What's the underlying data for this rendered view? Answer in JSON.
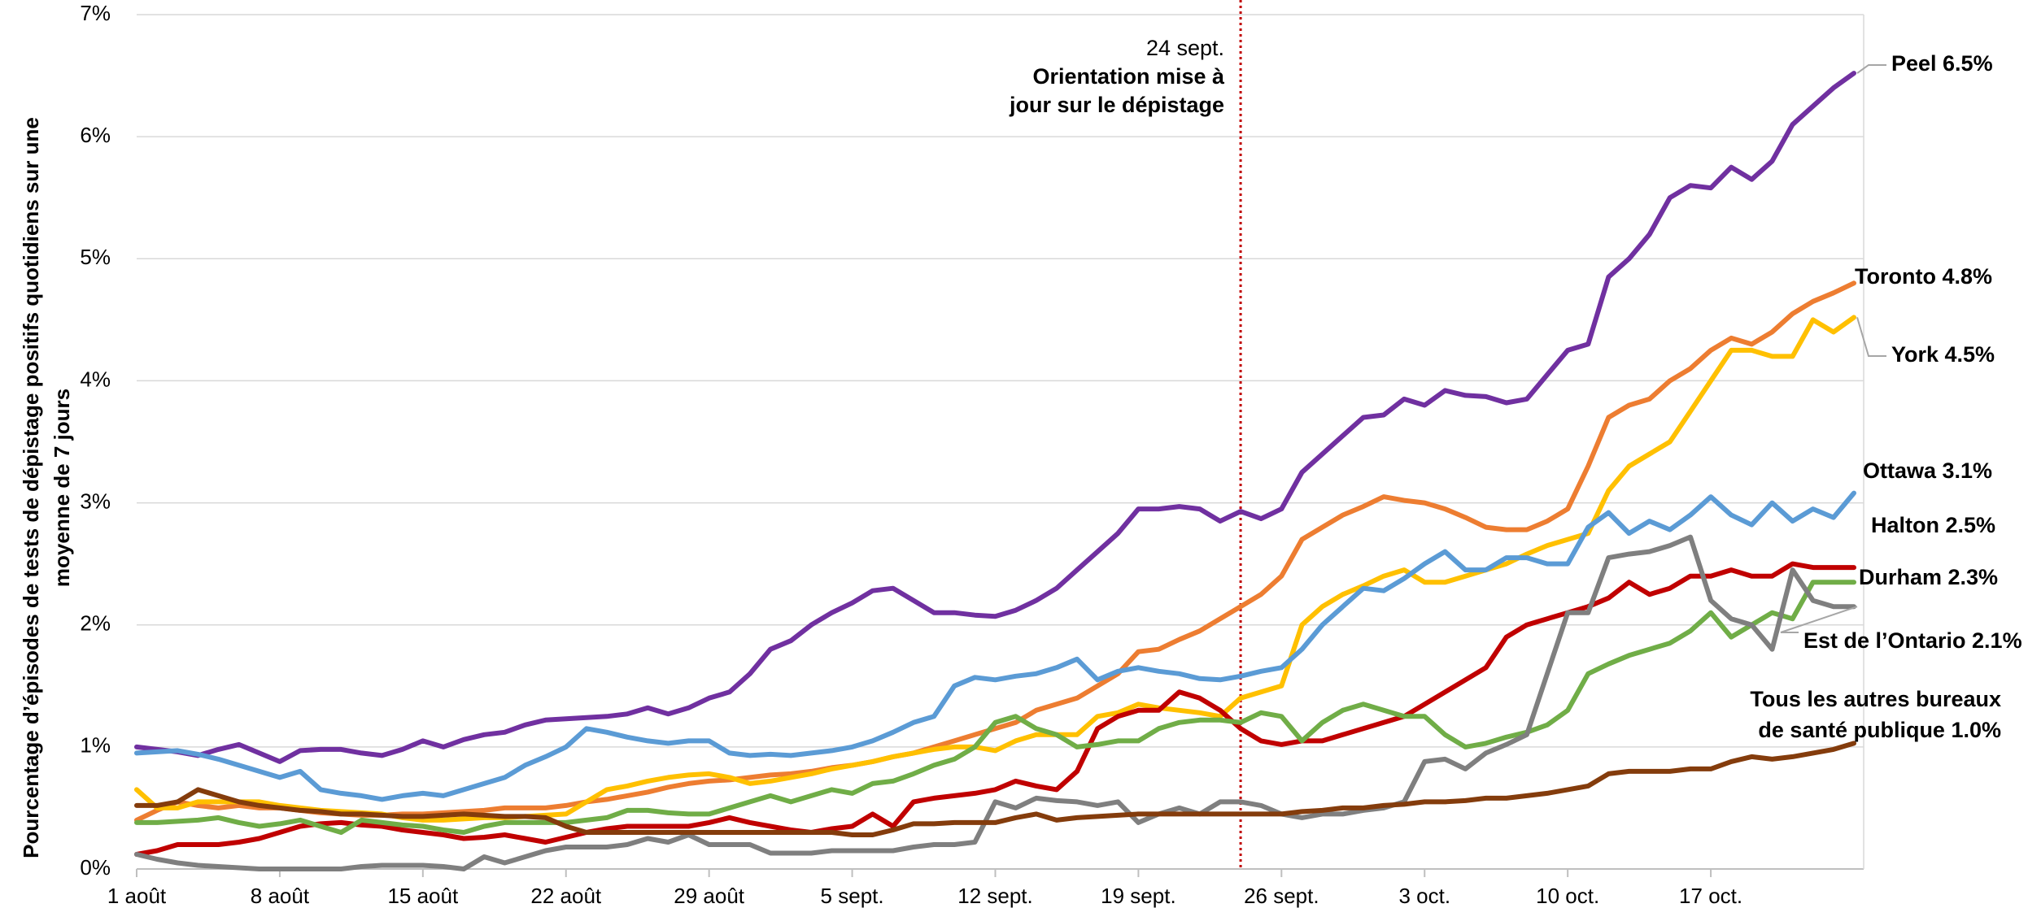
{
  "chart_data": {
    "type": "line",
    "y_axis_label": [
      "Pourcentage d’épisodes de tests de dépistage positifs quotidiens sur une",
      "moyenne de 7 jours"
    ],
    "categories": [
      "1 août",
      null,
      null,
      null,
      null,
      null,
      null,
      "8 août",
      null,
      null,
      null,
      null,
      null,
      null,
      "15 août",
      null,
      null,
      null,
      null,
      null,
      null,
      "22 août",
      null,
      null,
      null,
      null,
      null,
      null,
      "29 août",
      null,
      null,
      null,
      null,
      null,
      null,
      "5 sept.",
      null,
      null,
      null,
      null,
      null,
      null,
      "12 sept.",
      null,
      null,
      null,
      null,
      null,
      null,
      "19 sept.",
      null,
      null,
      null,
      null,
      null,
      null,
      "26 sept.",
      null,
      null,
      null,
      null,
      null,
      null,
      "3 oct.",
      null,
      null,
      null,
      null,
      null,
      null,
      "10 oct.",
      null,
      null,
      null,
      null,
      null,
      null,
      "17 oct.",
      null,
      null,
      null,
      null,
      null,
      null,
      null
    ],
    "ylim": [
      0,
      7
    ],
    "yticks": [
      {
        "value": 0,
        "label": "0%"
      },
      {
        "value": 1,
        "label": "1%"
      },
      {
        "value": 2,
        "label": "2%"
      },
      {
        "value": 3,
        "label": "3%"
      },
      {
        "value": 4,
        "label": "4%"
      },
      {
        "value": 5,
        "label": "5%"
      },
      {
        "value": 6,
        "label": "6%"
      },
      {
        "value": 7,
        "label": "7%"
      }
    ],
    "grid": true,
    "annotation": {
      "x_index": 54,
      "color": "#c00000",
      "lines": [
        "24 sept.",
        "Orientation mise à",
        "jour sur le dépistage"
      ]
    },
    "series": [
      {
        "name": "Peel 6.5%",
        "color": "#7030a0",
        "values": [
          1.0,
          0.98,
          0.96,
          0.93,
          0.98,
          1.02,
          0.95,
          0.88,
          0.97,
          0.98,
          0.98,
          0.95,
          0.93,
          0.98,
          1.05,
          1.0,
          1.06,
          1.1,
          1.12,
          1.18,
          1.22,
          1.23,
          1.24,
          1.25,
          1.27,
          1.32,
          1.27,
          1.32,
          1.4,
          1.45,
          1.6,
          1.8,
          1.87,
          2.0,
          2.1,
          2.18,
          2.28,
          2.3,
          2.2,
          2.1,
          2.1,
          2.08,
          2.07,
          2.12,
          2.2,
          2.3,
          2.45,
          2.6,
          2.75,
          2.95,
          2.95,
          2.97,
          2.95,
          2.85,
          2.93,
          2.87,
          2.95,
          3.25,
          3.4,
          3.55,
          3.7,
          3.72,
          3.85,
          3.8,
          3.92,
          3.88,
          3.87,
          3.82,
          3.85,
          4.05,
          4.25,
          4.3,
          4.85,
          5.0,
          5.2,
          5.5,
          5.6,
          5.58,
          5.75,
          5.65,
          5.8,
          6.1,
          6.25,
          6.4,
          6.52
        ]
      },
      {
        "name": "Toronto 4.8%",
        "color": "#ed7d31",
        "values": [
          0.4,
          0.48,
          0.55,
          0.52,
          0.5,
          0.52,
          0.5,
          0.5,
          0.48,
          0.46,
          0.45,
          0.44,
          0.44,
          0.45,
          0.45,
          0.46,
          0.47,
          0.48,
          0.5,
          0.5,
          0.5,
          0.52,
          0.55,
          0.57,
          0.6,
          0.63,
          0.67,
          0.7,
          0.72,
          0.73,
          0.75,
          0.77,
          0.78,
          0.8,
          0.83,
          0.85,
          0.88,
          0.92,
          0.95,
          1.0,
          1.05,
          1.1,
          1.15,
          1.2,
          1.3,
          1.35,
          1.4,
          1.5,
          1.6,
          1.78,
          1.8,
          1.88,
          1.95,
          2.05,
          2.15,
          2.25,
          2.4,
          2.7,
          2.8,
          2.9,
          2.97,
          3.05,
          3.02,
          3.0,
          2.95,
          2.88,
          2.8,
          2.78,
          2.78,
          2.85,
          2.95,
          3.3,
          3.7,
          3.8,
          3.85,
          4.0,
          4.1,
          4.25,
          4.35,
          4.3,
          4.4,
          4.55,
          4.65,
          4.72,
          4.8
        ]
      },
      {
        "name": "York 4.5%",
        "color": "#ffc000",
        "values": [
          0.65,
          0.5,
          0.5,
          0.55,
          0.55,
          0.55,
          0.55,
          0.52,
          0.5,
          0.48,
          0.47,
          0.46,
          0.45,
          0.42,
          0.4,
          0.4,
          0.41,
          0.42,
          0.42,
          0.43,
          0.44,
          0.45,
          0.55,
          0.65,
          0.68,
          0.72,
          0.75,
          0.77,
          0.78,
          0.75,
          0.7,
          0.72,
          0.75,
          0.78,
          0.82,
          0.85,
          0.88,
          0.92,
          0.95,
          0.98,
          1.0,
          1.0,
          0.97,
          1.05,
          1.1,
          1.1,
          1.1,
          1.25,
          1.28,
          1.35,
          1.32,
          1.3,
          1.28,
          1.25,
          1.4,
          1.45,
          1.5,
          2.0,
          2.15,
          2.25,
          2.32,
          2.4,
          2.45,
          2.35,
          2.35,
          2.4,
          2.45,
          2.5,
          2.58,
          2.65,
          2.7,
          2.75,
          3.1,
          3.3,
          3.4,
          3.5,
          3.75,
          4.0,
          4.25,
          4.25,
          4.2,
          4.2,
          4.5,
          4.4,
          4.52
        ]
      },
      {
        "name": "Ottawa 3.1%",
        "color": "#5b9bd5",
        "values": [
          0.95,
          0.96,
          0.97,
          0.94,
          0.9,
          0.85,
          0.8,
          0.75,
          0.8,
          0.65,
          0.62,
          0.6,
          0.57,
          0.6,
          0.62,
          0.6,
          0.65,
          0.7,
          0.75,
          0.85,
          0.92,
          1.0,
          1.15,
          1.12,
          1.08,
          1.05,
          1.03,
          1.05,
          1.05,
          0.95,
          0.93,
          0.94,
          0.93,
          0.95,
          0.97,
          1.0,
          1.05,
          1.12,
          1.2,
          1.25,
          1.5,
          1.57,
          1.55,
          1.58,
          1.6,
          1.65,
          1.72,
          1.55,
          1.62,
          1.65,
          1.62,
          1.6,
          1.56,
          1.55,
          1.58,
          1.62,
          1.65,
          1.8,
          2.0,
          2.15,
          2.3,
          2.28,
          2.38,
          2.5,
          2.6,
          2.45,
          2.45,
          2.55,
          2.55,
          2.5,
          2.5,
          2.8,
          2.92,
          2.75,
          2.85,
          2.78,
          2.9,
          3.05,
          2.9,
          2.82,
          3.0,
          2.85,
          2.95,
          2.88,
          3.08
        ]
      },
      {
        "name": "Halton 2.5%",
        "color": "#c00000",
        "values": [
          0.12,
          0.15,
          0.2,
          0.2,
          0.2,
          0.22,
          0.25,
          0.3,
          0.35,
          0.37,
          0.38,
          0.36,
          0.35,
          0.32,
          0.3,
          0.28,
          0.25,
          0.26,
          0.28,
          0.25,
          0.22,
          0.26,
          0.3,
          0.33,
          0.35,
          0.35,
          0.35,
          0.35,
          0.38,
          0.42,
          0.38,
          0.35,
          0.32,
          0.3,
          0.33,
          0.35,
          0.45,
          0.35,
          0.55,
          0.58,
          0.6,
          0.62,
          0.65,
          0.72,
          0.68,
          0.65,
          0.8,
          1.15,
          1.25,
          1.3,
          1.3,
          1.45,
          1.4,
          1.3,
          1.15,
          1.05,
          1.02,
          1.05,
          1.05,
          1.1,
          1.15,
          1.2,
          1.25,
          1.35,
          1.45,
          1.55,
          1.65,
          1.9,
          2.0,
          2.05,
          2.1,
          2.15,
          2.22,
          2.35,
          2.25,
          2.3,
          2.4,
          2.4,
          2.45,
          2.4,
          2.4,
          2.5,
          2.47,
          2.47,
          2.47
        ]
      },
      {
        "name": "Durham 2.3%",
        "color": "#70ad47",
        "values": [
          0.38,
          0.38,
          0.39,
          0.4,
          0.42,
          0.38,
          0.35,
          0.37,
          0.4,
          0.35,
          0.3,
          0.4,
          0.38,
          0.36,
          0.35,
          0.32,
          0.3,
          0.35,
          0.38,
          0.38,
          0.38,
          0.38,
          0.4,
          0.42,
          0.48,
          0.48,
          0.46,
          0.45,
          0.45,
          0.5,
          0.55,
          0.6,
          0.55,
          0.6,
          0.65,
          0.62,
          0.7,
          0.72,
          0.78,
          0.85,
          0.9,
          1.0,
          1.2,
          1.25,
          1.15,
          1.1,
          1.0,
          1.02,
          1.05,
          1.05,
          1.15,
          1.2,
          1.22,
          1.22,
          1.2,
          1.28,
          1.25,
          1.05,
          1.2,
          1.3,
          1.35,
          1.3,
          1.25,
          1.25,
          1.1,
          1.0,
          1.03,
          1.08,
          1.12,
          1.18,
          1.3,
          1.6,
          1.68,
          1.75,
          1.8,
          1.85,
          1.95,
          2.1,
          1.9,
          2.0,
          2.1,
          2.05,
          2.35,
          2.35,
          2.35
        ]
      },
      {
        "name": "Est de l’Ontario 2.1%",
        "color": "#7f7f7f",
        "values": [
          0.12,
          0.08,
          0.05,
          0.03,
          0.02,
          0.01,
          0.0,
          0.0,
          0.0,
          0.0,
          0.0,
          0.02,
          0.03,
          0.03,
          0.03,
          0.02,
          0.0,
          0.1,
          0.05,
          0.1,
          0.15,
          0.18,
          0.18,
          0.18,
          0.2,
          0.25,
          0.22,
          0.28,
          0.2,
          0.2,
          0.2,
          0.13,
          0.13,
          0.13,
          0.15,
          0.15,
          0.15,
          0.15,
          0.18,
          0.2,
          0.2,
          0.22,
          0.55,
          0.5,
          0.58,
          0.56,
          0.55,
          0.52,
          0.55,
          0.38,
          0.45,
          0.5,
          0.45,
          0.55,
          0.55,
          0.52,
          0.45,
          0.42,
          0.45,
          0.45,
          0.48,
          0.5,
          0.55,
          0.88,
          0.9,
          0.82,
          0.95,
          1.02,
          1.1,
          1.6,
          2.1,
          2.1,
          2.55,
          2.58,
          2.6,
          2.65,
          2.72,
          2.2,
          2.05,
          2.0,
          1.8,
          2.45,
          2.2,
          2.15,
          2.15
        ]
      },
      {
        "name": "Tous les autres bureaux de santé publique  1.0%",
        "color": "#843c0c",
        "values": [
          0.52,
          0.52,
          0.55,
          0.65,
          0.6,
          0.55,
          0.52,
          0.5,
          0.48,
          0.47,
          0.45,
          0.45,
          0.44,
          0.43,
          0.43,
          0.44,
          0.45,
          0.44,
          0.43,
          0.43,
          0.42,
          0.35,
          0.3,
          0.3,
          0.3,
          0.3,
          0.3,
          0.3,
          0.3,
          0.3,
          0.3,
          0.3,
          0.3,
          0.3,
          0.3,
          0.28,
          0.28,
          0.32,
          0.37,
          0.37,
          0.38,
          0.38,
          0.38,
          0.42,
          0.45,
          0.4,
          0.42,
          0.43,
          0.44,
          0.45,
          0.45,
          0.45,
          0.45,
          0.45,
          0.45,
          0.45,
          0.45,
          0.47,
          0.48,
          0.5,
          0.5,
          0.52,
          0.53,
          0.55,
          0.55,
          0.56,
          0.58,
          0.58,
          0.6,
          0.62,
          0.65,
          0.68,
          0.78,
          0.8,
          0.8,
          0.8,
          0.82,
          0.82,
          0.88,
          0.92,
          0.9,
          0.92,
          0.95,
          0.98,
          1.03
        ]
      }
    ]
  }
}
